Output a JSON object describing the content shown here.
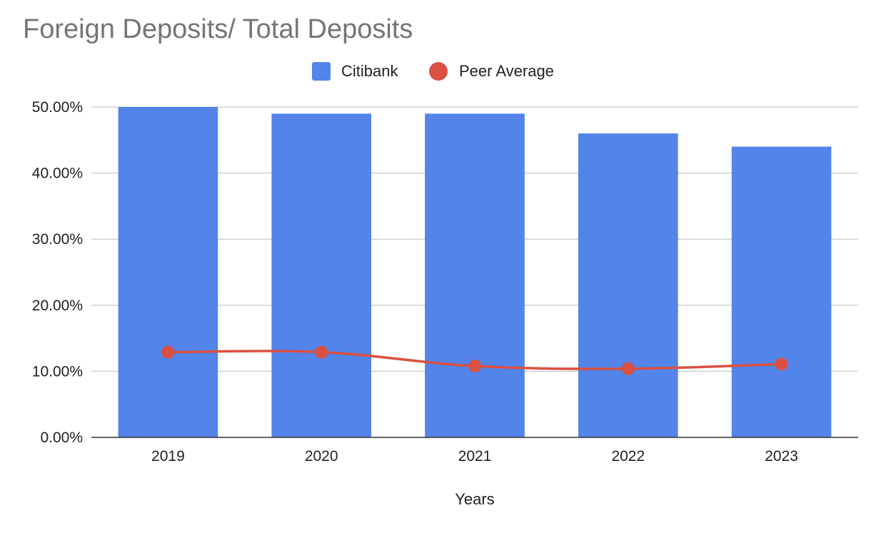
{
  "chart_data": {
    "type": "bar",
    "title": "Foreign Deposits/ Total Deposits",
    "xlabel": "Years",
    "ylabel": "",
    "categories": [
      "2019",
      "2020",
      "2021",
      "2022",
      "2023"
    ],
    "series": [
      {
        "name": "Citibank",
        "type": "bar",
        "color": "#5384EA",
        "values": [
          0.5,
          0.49,
          0.49,
          0.46,
          0.44
        ]
      },
      {
        "name": "Peer Average",
        "type": "line",
        "color": "#DA5141",
        "values": [
          0.129,
          0.129,
          0.108,
          0.104,
          0.111
        ]
      }
    ],
    "ylim": [
      0,
      0.5
    ],
    "yticks": [
      {
        "value": 0.0,
        "label": "0.00%"
      },
      {
        "value": 0.1,
        "label": "10.00%"
      },
      {
        "value": 0.2,
        "label": "20.00%"
      },
      {
        "value": 0.3,
        "label": "30.00%"
      },
      {
        "value": 0.4,
        "label": "40.00%"
      },
      {
        "value": 0.5,
        "label": "50.00%"
      }
    ],
    "grid": true,
    "legend_position": "top-center",
    "colors": {
      "title": "#757575",
      "gridline": "#D0D0D0",
      "baseline": "#333333",
      "text": "#222222"
    }
  }
}
